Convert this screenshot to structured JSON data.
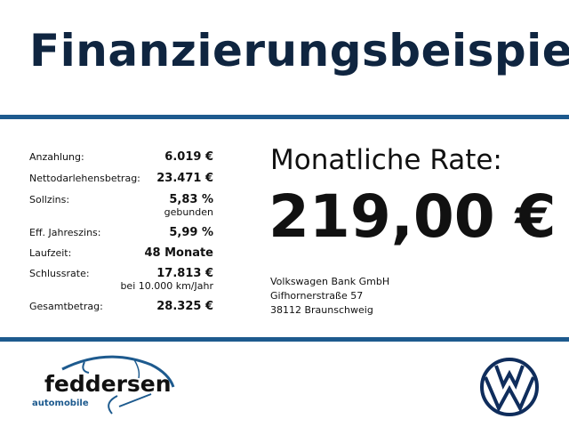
{
  "header": {
    "title": "Finanzierungsbeispiel"
  },
  "financing": [
    {
      "label": "Anzahlung:",
      "value": "6.019 €"
    },
    {
      "label": "Nettodarlehensbetrag:",
      "value": "23.471 €"
    },
    {
      "label": "Sollzins:",
      "value": "5,83 %",
      "note": "gebunden"
    },
    {
      "label": "Eff. Jahreszins:",
      "value": "5,99 %"
    },
    {
      "label": "Laufzeit:",
      "value": "48 Monate"
    },
    {
      "label": "Schlussrate:",
      "value": "17.813 €",
      "note": "bei 10.000 km/Jahr"
    },
    {
      "label": "Gesamtbetrag:",
      "value": "28.325 €"
    }
  ],
  "rate": {
    "label": "Monatliche Rate:",
    "value": "219,00 €"
  },
  "bank": {
    "name": "Volkswagen Bank GmbH",
    "street": "Gifhornerstraße 57",
    "city": "38112 Braunschweig"
  },
  "footer": {
    "dealer_logo": "feddersen automobile",
    "dealer_name": "feddersen",
    "dealer_sub": "automobile",
    "brand_logo": "VW"
  },
  "colors": {
    "accent": "#1d5a8e",
    "title": "#0f2540"
  }
}
